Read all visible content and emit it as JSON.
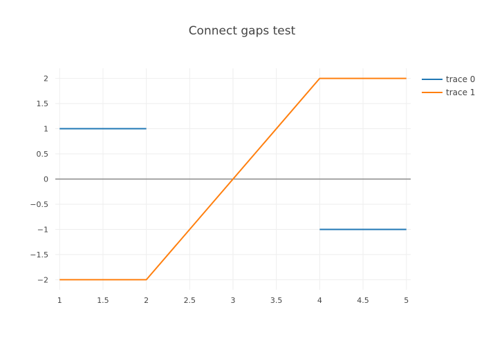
{
  "chart_data": {
    "type": "line",
    "title": "Connect gaps test",
    "xlabel": "",
    "ylabel": "",
    "xlim": [
      0.95,
      5.05
    ],
    "ylim": [
      -2.2,
      2.2
    ],
    "x_ticks": [
      1,
      1.5,
      2,
      2.5,
      3,
      3.5,
      4,
      4.5,
      5
    ],
    "x_tick_labels": [
      "1",
      "1.5",
      "2",
      "2.5",
      "3",
      "3.5",
      "4",
      "4.5",
      "5"
    ],
    "y_ticks": [
      2,
      1.5,
      1,
      0.5,
      0,
      -0.5,
      -1,
      -1.5,
      -2
    ],
    "y_tick_labels": [
      "2",
      "1.5",
      "1",
      "0.5",
      "0",
      "−0.5",
      "−1",
      "−1.5",
      "−2"
    ],
    "grid": true,
    "legend_position": "top-right",
    "series": [
      {
        "name": "trace 0",
        "color": "#1f77b4",
        "x": [
          1,
          2,
          3,
          4,
          5
        ],
        "y": [
          1,
          1,
          null,
          -1,
          -1
        ]
      },
      {
        "name": "trace 1",
        "color": "#ff7f0e",
        "x": [
          1,
          2,
          3,
          4,
          5
        ],
        "y": [
          -2,
          -2,
          null,
          2,
          2
        ],
        "connect_gaps": true
      }
    ]
  }
}
